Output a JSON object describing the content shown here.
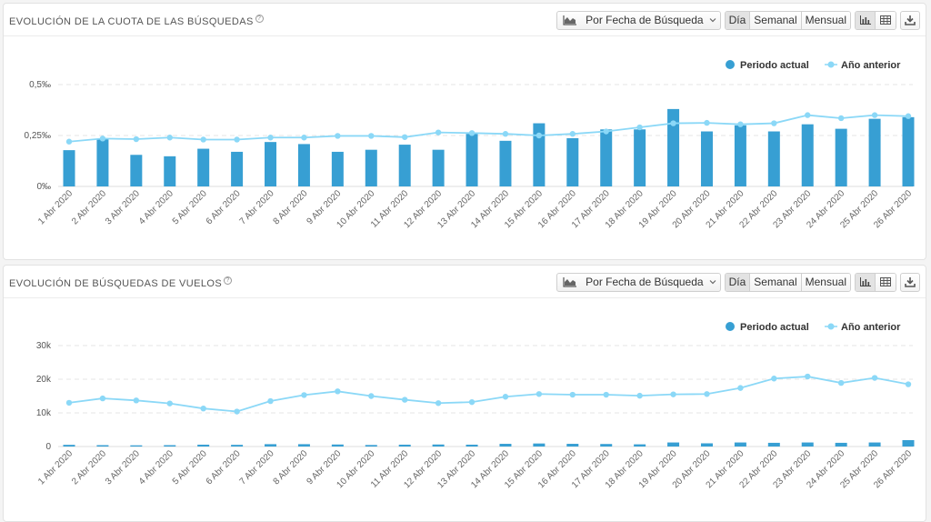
{
  "panels": [
    {
      "title": "Evolución de la cuota de las búsquedas",
      "help": "?",
      "dropdown_label": "Por Fecha de Búsqueda",
      "periods": [
        "Día",
        "Semanal",
        "Mensual"
      ],
      "active_period": "Día"
    },
    {
      "title": "Evolución de búsquedas de vuelos",
      "help": "?",
      "dropdown_label": "Por Fecha de Búsqueda",
      "periods": [
        "Día",
        "Semanal",
        "Mensual"
      ],
      "active_period": "Día"
    }
  ],
  "colors": {
    "bar": "#379fd3",
    "line": "#8bd8f7",
    "grid": "#e6e6e6"
  },
  "icons": {
    "area_chart": "area-chart-icon",
    "chevron": "chevron-down-icon",
    "bar_view": "bar-chart-icon",
    "table_view": "table-icon",
    "download": "download-icon"
  },
  "chart_data": [
    {
      "type": "bar",
      "title": "Evolución de la cuota de las búsquedas",
      "categories": [
        "1 Abr 2020",
        "2 Abr 2020",
        "3 Abr 2020",
        "4 Abr 2020",
        "5 Abr 2020",
        "6 Abr 2020",
        "7 Abr 2020",
        "8 Abr 2020",
        "9 Abr 2020",
        "10 Abr 2020",
        "11 Abr 2020",
        "12 Abr 2020",
        "13 Abr 2020",
        "14 Abr 2020",
        "15 Abr 2020",
        "16 Abr 2020",
        "17 Abr 2020",
        "18 Abr 2020",
        "19 Abr 2020",
        "20 Abr 2020",
        "21 Abr 2020",
        "22 Abr 2020",
        "23 Abr 2020",
        "24 Abr 2020",
        "25 Abr 2020",
        "26 Abr 2020"
      ],
      "series": [
        {
          "name": "Periodo actual",
          "type": "bar",
          "values": [
            0.178,
            0.232,
            0.155,
            0.148,
            0.185,
            0.17,
            0.218,
            0.208,
            0.17,
            0.18,
            0.205,
            0.18,
            0.258,
            0.224,
            0.31,
            0.237,
            0.28,
            0.28,
            0.38,
            0.27,
            0.3,
            0.27,
            0.305,
            0.283,
            0.332,
            0.34
          ]
        },
        {
          "name": "Año anterior",
          "type": "line",
          "values": [
            0.22,
            0.235,
            0.232,
            0.24,
            0.23,
            0.23,
            0.24,
            0.24,
            0.248,
            0.248,
            0.242,
            0.265,
            0.262,
            0.258,
            0.25,
            0.258,
            0.27,
            0.29,
            0.31,
            0.312,
            0.305,
            0.31,
            0.35,
            0.335,
            0.35,
            0.345
          ]
        }
      ],
      "ylim": [
        0,
        0.5
      ],
      "yticks": [
        0,
        0.25,
        0.5
      ],
      "ytick_labels": [
        "0‰",
        "0,25‰",
        "0,5‰"
      ],
      "legend": "top-right",
      "grid": true
    },
    {
      "type": "bar",
      "title": "Evolución de búsquedas de vuelos",
      "categories": [
        "1 Abr 2020",
        "2 Abr 2020",
        "3 Abr 2020",
        "4 Abr 2020",
        "5 Abr 2020",
        "6 Abr 2020",
        "7 Abr 2020",
        "8 Abr 2020",
        "9 Abr 2020",
        "10 Abr 2020",
        "11 Abr 2020",
        "12 Abr 2020",
        "13 Abr 2020",
        "14 Abr 2020",
        "15 Abr 2020",
        "16 Abr 2020",
        "17 Abr 2020",
        "18 Abr 2020",
        "19 Abr 2020",
        "20 Abr 2020",
        "21 Abr 2020",
        "22 Abr 2020",
        "23 Abr 2020",
        "24 Abr 2020",
        "25 Abr 2020",
        "26 Abr 2020"
      ],
      "series": [
        {
          "name": "Periodo actual",
          "type": "bar",
          "values": [
            500,
            400,
            350,
            400,
            550,
            500,
            700,
            700,
            600,
            450,
            550,
            600,
            550,
            800,
            900,
            800,
            750,
            650,
            1200,
            950,
            1200,
            1100,
            1200,
            1100,
            1200,
            1900
          ]
        },
        {
          "name": "Año anterior",
          "type": "line",
          "values": [
            13000,
            14300,
            13700,
            12800,
            11300,
            10400,
            13500,
            15300,
            16400,
            15000,
            13900,
            12900,
            13200,
            14800,
            15600,
            15400,
            15400,
            15100,
            15500,
            15600,
            17400,
            20200,
            20800,
            18900,
            20400,
            18500
          ]
        }
      ],
      "ylim": [
        0,
        30000
      ],
      "yticks": [
        0,
        10000,
        20000,
        30000
      ],
      "ytick_labels": [
        "0",
        "10k",
        "20k",
        "30k"
      ],
      "legend": "top-right",
      "grid": true
    }
  ]
}
